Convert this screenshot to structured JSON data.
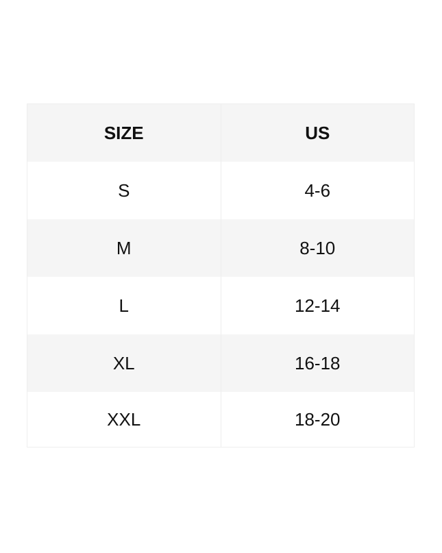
{
  "table": {
    "headers": [
      "SIZE",
      "US"
    ],
    "rows": [
      [
        "S",
        "4-6"
      ],
      [
        "M",
        "8-10"
      ],
      [
        "L",
        "12-14"
      ],
      [
        "XL",
        "16-18"
      ],
      [
        "XXL",
        "18-20"
      ]
    ]
  },
  "colors": {
    "stripe": "#f5f5f5",
    "border": "#eeeeee",
    "text": "#111111"
  }
}
